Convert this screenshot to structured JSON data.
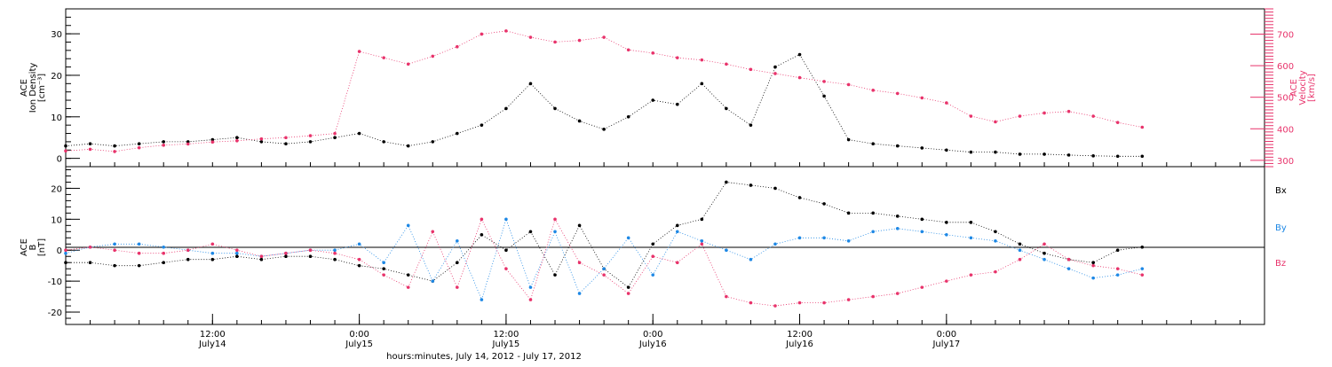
{
  "colors": {
    "black": "#000000",
    "pink": "#e8336b",
    "blue": "#1e88e5"
  },
  "chart_data": [
    {
      "type": "scatter",
      "panel": "top",
      "ylabel_left": [
        "ACE",
        "Ion Density",
        "[cm⁻³]"
      ],
      "ylabel_right": [
        "ACE",
        "Velocity",
        "[km/s]"
      ],
      "ylim_left": [
        -2,
        36
      ],
      "ylim_right": [
        280,
        780
      ],
      "left_ticks": [
        "0",
        "10",
        "20",
        "30"
      ],
      "right_ticks": [
        "300",
        "400",
        "500",
        "600",
        "700"
      ],
      "series": [
        {
          "axis": "left",
          "color": "#000000",
          "x": [
            0,
            2,
            4,
            6,
            8,
            10,
            12,
            14,
            16,
            18,
            20,
            22,
            24,
            26,
            28,
            30,
            32,
            34,
            36,
            38,
            40,
            42,
            44,
            46,
            48,
            50,
            52,
            54,
            56,
            58,
            60,
            62,
            64,
            66,
            68,
            70,
            72,
            74,
            76,
            78,
            80,
            82,
            84,
            86,
            88
          ],
          "y": [
            3,
            3.5,
            3,
            3.5,
            4,
            4,
            4.5,
            5,
            4,
            3.5,
            4,
            5,
            6,
            4,
            3,
            4,
            6,
            8,
            12,
            18,
            12,
            9,
            7,
            10,
            14,
            13,
            18,
            12,
            8,
            22,
            25,
            15,
            4.5,
            3.5,
            3,
            2.5,
            2,
            1.5,
            1.5,
            1,
            1,
            0.8,
            0.6,
            0.5,
            0.5
          ]
        },
        {
          "axis": "right",
          "color": "#e8336b",
          "x": [
            0,
            2,
            4,
            6,
            8,
            10,
            12,
            14,
            16,
            18,
            20,
            22,
            24,
            26,
            28,
            30,
            32,
            34,
            36,
            38,
            40,
            42,
            44,
            46,
            48,
            50,
            52,
            54,
            56,
            58,
            60,
            62,
            64,
            66,
            68,
            70,
            72,
            74,
            76,
            78,
            80,
            82,
            84,
            86,
            88
          ],
          "y": [
            330,
            335,
            328,
            340,
            348,
            352,
            358,
            362,
            368,
            372,
            378,
            385,
            645,
            625,
            605,
            630,
            660,
            700,
            710,
            690,
            675,
            680,
            690,
            650,
            640,
            625,
            618,
            605,
            588,
            575,
            562,
            550,
            540,
            522,
            512,
            498,
            482,
            440,
            422,
            440,
            450,
            455,
            440,
            420,
            405
          ]
        }
      ]
    },
    {
      "type": "scatter",
      "panel": "bottom",
      "ylabel_left": [
        "ACE",
        "B",
        "[nT]"
      ],
      "ylim": [
        -24,
        27
      ],
      "left_ticks": [
        "-20",
        "-10",
        "0",
        "10",
        "20"
      ],
      "legend": [
        "Bx",
        "By",
        "Bz"
      ],
      "xlabel": "hours:minutes, July 14, 2012 - July 17, 2012",
      "x_ticks": [
        "12:00",
        "0:00",
        "12:00",
        "0:00",
        "12:00",
        "0:00"
      ],
      "x_tick_dates": [
        "July14",
        "July15",
        "July15",
        "July16",
        "July16",
        "July17"
      ],
      "series": [
        {
          "name": "Bx",
          "color": "#000000",
          "x": [
            0,
            2,
            4,
            6,
            8,
            10,
            12,
            14,
            16,
            18,
            20,
            22,
            24,
            26,
            28,
            30,
            32,
            34,
            36,
            38,
            40,
            42,
            44,
            46,
            48,
            50,
            52,
            54,
            56,
            58,
            60,
            62,
            64,
            66,
            68,
            70,
            72,
            74,
            76,
            78,
            80,
            82,
            84,
            86,
            88
          ],
          "y": [
            -4,
            -4,
            -5,
            -5,
            -4,
            -3,
            -3,
            -2,
            -3,
            -2,
            -2,
            -3,
            -5,
            -6,
            -8,
            -10,
            -4,
            5,
            0,
            6,
            -8,
            8,
            -6,
            -12,
            2,
            8,
            10,
            22,
            21,
            20,
            17,
            15,
            12,
            12,
            11,
            10,
            9,
            9,
            6,
            2,
            -1,
            -3,
            -4,
            0,
            1
          ]
        },
        {
          "name": "By",
          "color": "#1e88e5",
          "x": [
            0,
            2,
            4,
            6,
            8,
            10,
            12,
            14,
            16,
            18,
            20,
            22,
            24,
            26,
            28,
            30,
            32,
            34,
            36,
            38,
            40,
            42,
            44,
            46,
            48,
            50,
            52,
            54,
            56,
            58,
            60,
            62,
            64,
            66,
            68,
            70,
            72,
            74,
            76,
            78,
            80,
            82,
            84,
            86,
            88
          ],
          "y": [
            -1,
            1,
            2,
            2,
            1,
            0,
            -1,
            -1,
            -2,
            -1,
            0,
            0,
            2,
            -4,
            8,
            -10,
            3,
            -16,
            10,
            -12,
            6,
            -14,
            -6,
            4,
            -8,
            6,
            3,
            0,
            -3,
            2,
            4,
            4,
            3,
            6,
            7,
            6,
            5,
            4,
            3,
            0,
            -3,
            -6,
            -9,
            -8,
            -6
          ]
        },
        {
          "name": "Bz",
          "color": "#e8336b",
          "x": [
            0,
            2,
            4,
            6,
            8,
            10,
            12,
            14,
            16,
            18,
            20,
            22,
            24,
            26,
            28,
            30,
            32,
            34,
            36,
            38,
            40,
            42,
            44,
            46,
            48,
            50,
            52,
            54,
            56,
            58,
            60,
            62,
            64,
            66,
            68,
            70,
            72,
            74,
            76,
            78,
            80,
            82,
            84,
            86,
            88
          ],
          "y": [
            0,
            1,
            0,
            -1,
            -1,
            0,
            2,
            0,
            -2,
            -1,
            0,
            -1,
            -3,
            -8,
            -12,
            6,
            -12,
            10,
            -6,
            -16,
            10,
            -4,
            -8,
            -14,
            -2,
            -4,
            2,
            -15,
            -17,
            -18,
            -17,
            -17,
            -16,
            -15,
            -14,
            -12,
            -10,
            -8,
            -7,
            -3,
            2,
            -3,
            -5,
            -6,
            -8
          ]
        }
      ]
    }
  ]
}
